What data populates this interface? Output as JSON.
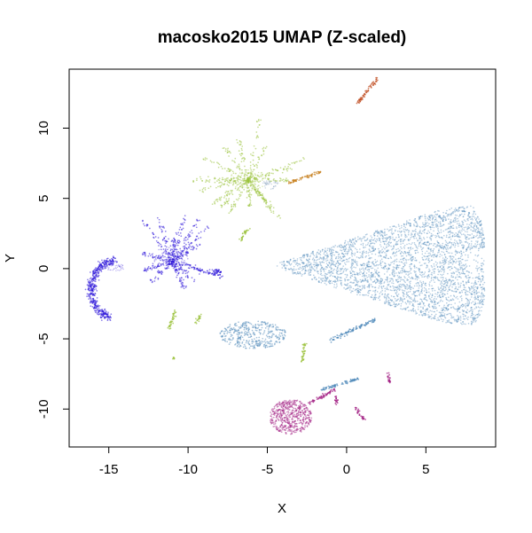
{
  "chart_data": {
    "type": "scatter",
    "title": "macosko2015 UMAP (Z-scaled)",
    "xlabel": "X",
    "ylabel": "Y",
    "xlim": [
      -17.5,
      9.4
    ],
    "ylim": [
      -12.7,
      14.2
    ],
    "xticks": [
      -15,
      -10,
      -5,
      0,
      5
    ],
    "yticks": [
      -10,
      -5,
      0,
      5,
      10
    ],
    "grid": false,
    "legend": "none",
    "colors": {
      "steelblue": "#4a86b8",
      "blue": "#2a12d8",
      "lightgreen": "#9bc23c",
      "orange": "#c8801e",
      "red": "#bf4a1e",
      "magenta": "#a01a80"
    },
    "series": [
      {
        "color": "steelblue",
        "clusters": [
          {
            "shape": "big_blob",
            "x_range": [
              -4.5,
              8.7
            ],
            "y_range": [
              -4.3,
              4.6
            ],
            "center": [
              5.5,
              0.3
            ]
          },
          {
            "shape": "ellipse",
            "center": [
              -5.7,
              -4.8
            ],
            "x_range": [
              -8.0,
              -3.8
            ],
            "y_range": [
              -5.7,
              -3.7
            ]
          },
          {
            "shape": "streak",
            "from": [
              -1.0,
              -5.1
            ],
            "to": [
              1.8,
              -3.6
            ]
          },
          {
            "shape": "streak",
            "from": [
              -1.5,
              -8.6
            ],
            "to": [
              0.8,
              -7.8
            ]
          }
        ]
      },
      {
        "color": "blue",
        "clusters": [
          {
            "shape": "arc",
            "center": [
              -13.2,
              -1.8
            ],
            "x_range": [
              -16.2,
              -13.0
            ],
            "y_range": [
              -3.6,
              0.6
            ]
          },
          {
            "shape": "fan",
            "center": [
              -10.3,
              0.6
            ],
            "x_range": [
              -12.8,
              -7.8
            ],
            "y_range": [
              -1.5,
              4.0
            ]
          }
        ]
      },
      {
        "color": "lightgreen",
        "clusters": [
          {
            "shape": "star",
            "center": [
              -6.7,
              6.3
            ],
            "x_range": [
              -10.0,
              -2.3
            ],
            "y_range": [
              3.5,
              10.7
            ]
          },
          {
            "shape": "streak",
            "from": [
              -6.7,
              2.0
            ],
            "to": [
              -6.2,
              2.9
            ]
          },
          {
            "shape": "streak",
            "from": [
              -11.2,
              -4.3
            ],
            "to": [
              -10.8,
              -3.0
            ]
          },
          {
            "shape": "streak",
            "from": [
              -9.5,
              -3.9
            ],
            "to": [
              -9.2,
              -3.3
            ]
          },
          {
            "shape": "streak",
            "from": [
              -2.8,
              -6.7
            ],
            "to": [
              -2.6,
              -5.3
            ]
          },
          {
            "shape": "dot",
            "center": [
              -10.9,
              -6.4
            ]
          }
        ]
      },
      {
        "color": "orange",
        "clusters": [
          {
            "shape": "streak",
            "from": [
              -3.7,
              6.1
            ],
            "to": [
              -1.6,
              6.9
            ]
          }
        ]
      },
      {
        "color": "red",
        "clusters": [
          {
            "shape": "streak",
            "from": [
              0.7,
              11.8
            ],
            "to": [
              2.0,
              13.6
            ]
          }
        ]
      },
      {
        "color": "magenta",
        "clusters": [
          {
            "shape": "blob",
            "center": [
              -3.6,
              -10.7
            ],
            "x_range": [
              -4.9,
              -2.2
            ],
            "y_range": [
              -11.8,
              -9.3
            ]
          },
          {
            "shape": "streak",
            "from": [
              -2.4,
              -9.6
            ],
            "to": [
              -0.7,
              -8.6
            ]
          },
          {
            "shape": "streak",
            "from": [
              -0.8,
              -9.0
            ],
            "to": [
              -0.6,
              -9.6
            ]
          },
          {
            "shape": "streak",
            "from": [
              0.6,
              -9.9
            ],
            "to": [
              1.1,
              -10.8
            ]
          },
          {
            "shape": "streak",
            "from": [
              2.6,
              -7.4
            ],
            "to": [
              2.7,
              -8.1
            ]
          }
        ]
      }
    ]
  }
}
